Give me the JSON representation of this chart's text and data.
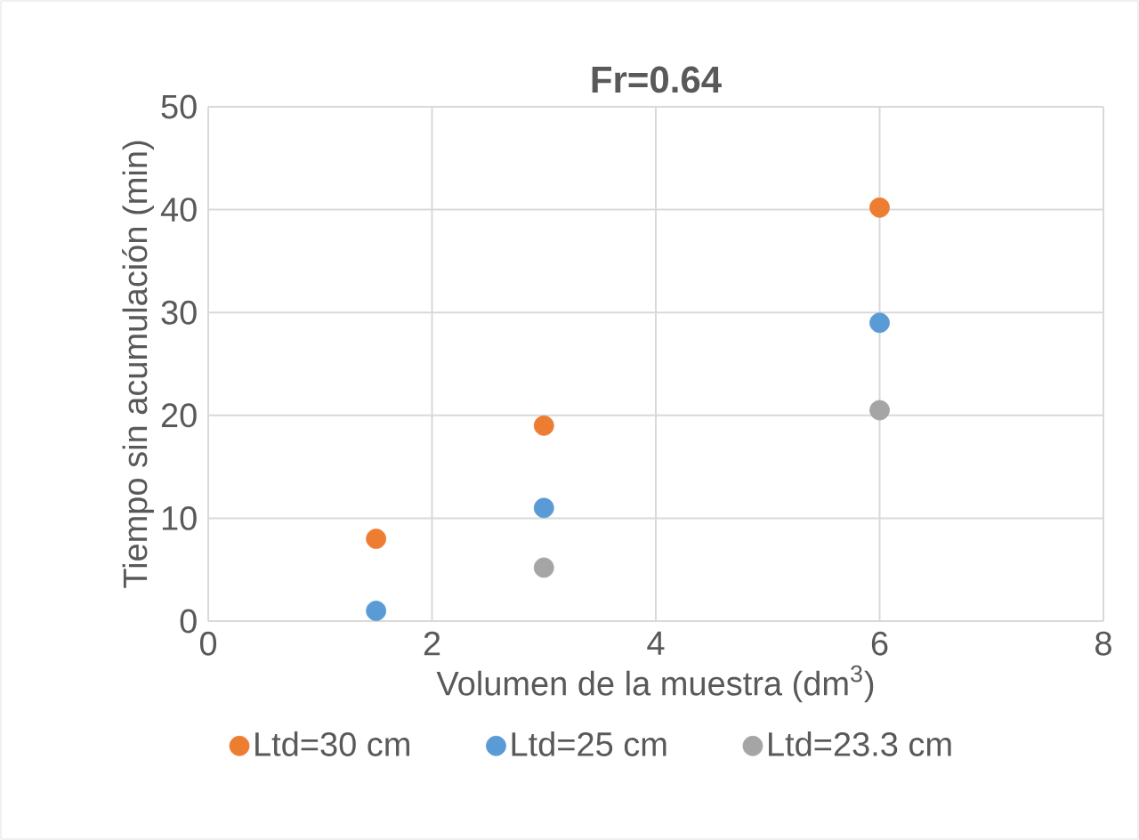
{
  "chart_data": {
    "type": "scatter",
    "title": "Fr=0.64",
    "xlabel": "Volumen de la muestra (dm$^{3}$)",
    "ylabel": "Tiempo sin acumulación (min)",
    "xlim": [
      0,
      8
    ],
    "ylim": [
      0,
      50
    ],
    "xticks": [
      0,
      2,
      4,
      6,
      8
    ],
    "yticks": [
      0,
      10,
      20,
      30,
      40,
      50
    ],
    "grid": true,
    "legend": "bottom",
    "marker": "circle",
    "series": [
      {
        "name": "Ltd=30 cm",
        "color": "#ed7d31",
        "x": [
          1.5,
          3,
          6
        ],
        "values": [
          8,
          19,
          40.2
        ]
      },
      {
        "name": "Ltd=25 cm",
        "color": "#5b9bd5",
        "x": [
          1.5,
          3,
          6
        ],
        "values": [
          1,
          11,
          29
        ]
      },
      {
        "name": "Ltd=23.3 cm",
        "color": "#a5a5a5",
        "x": [
          3,
          6
        ],
        "values": [
          5.2,
          20.5
        ]
      }
    ]
  }
}
